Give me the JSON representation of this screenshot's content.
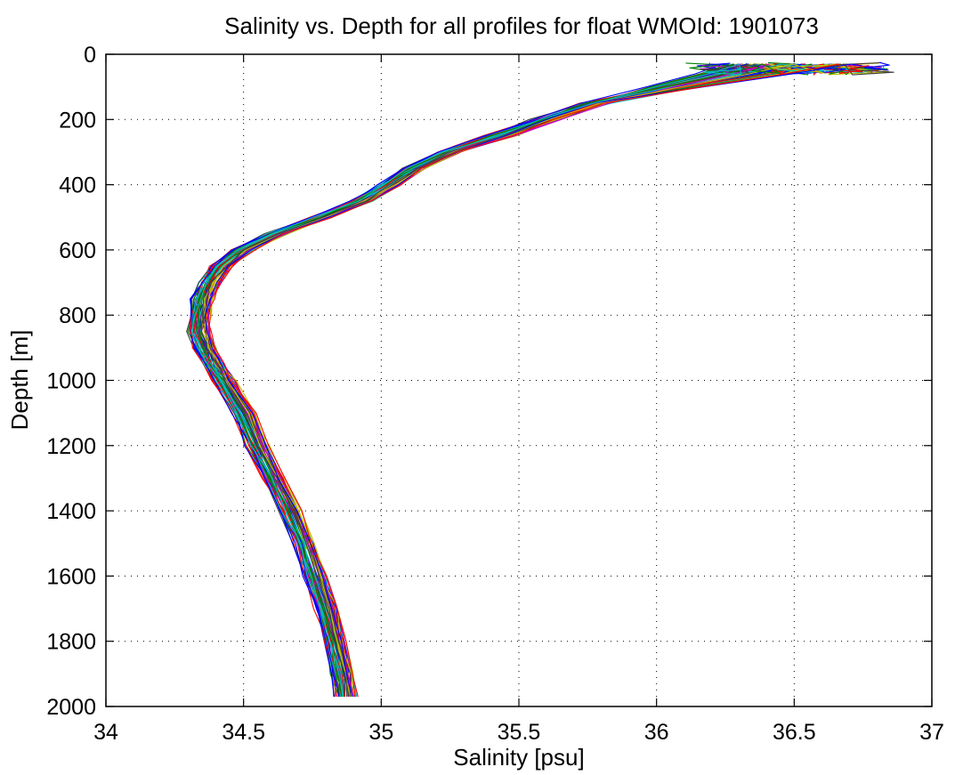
{
  "chart_data": {
    "type": "line",
    "title": "Salinity vs. Depth for all profiles for float WMOId: 1901073",
    "xlabel": "Salinity [psu]",
    "ylabel": "Depth [m]",
    "xlim": [
      34,
      37
    ],
    "ylim": [
      0,
      2000
    ],
    "y_reversed": true,
    "grid": true,
    "grid_style": "dotted",
    "x_ticks": [
      "34",
      "34.5",
      "35",
      "35.5",
      "36",
      "36.5",
      "37"
    ],
    "y_ticks": [
      "0",
      "200",
      "400",
      "600",
      "800",
      "1000",
      "1200",
      "1400",
      "1600",
      "1800",
      "2000"
    ],
    "series_colors": [
      "#0000ff",
      "#008000",
      "#ff0000",
      "#00bfbf",
      "#bf00bf",
      "#bfbf00",
      "#404040"
    ],
    "base_profile": {
      "depth": [
        30,
        60,
        100,
        150,
        200,
        250,
        300,
        350,
        400,
        450,
        500,
        550,
        600,
        650,
        700,
        750,
        800,
        850,
        900,
        950,
        1000,
        1100,
        1200,
        1300,
        1400,
        1500,
        1600,
        1700,
        1800,
        1900,
        1970
      ],
      "salinity": [
        36.42,
        36.28,
        36.05,
        35.78,
        35.6,
        35.43,
        35.25,
        35.12,
        35.03,
        34.93,
        34.78,
        34.62,
        34.5,
        34.42,
        34.38,
        34.35,
        34.34,
        34.34,
        34.36,
        34.39,
        34.43,
        34.5,
        34.55,
        34.61,
        34.67,
        34.72,
        34.76,
        34.8,
        34.83,
        34.86,
        34.87
      ]
    },
    "profile_count": 60,
    "notes": "Many overlapping salinity profiles; surface values scatter between about 36.1 and 36.87 psu, bottom values between about 34.84 and 34.91 psu near 1970 m."
  }
}
